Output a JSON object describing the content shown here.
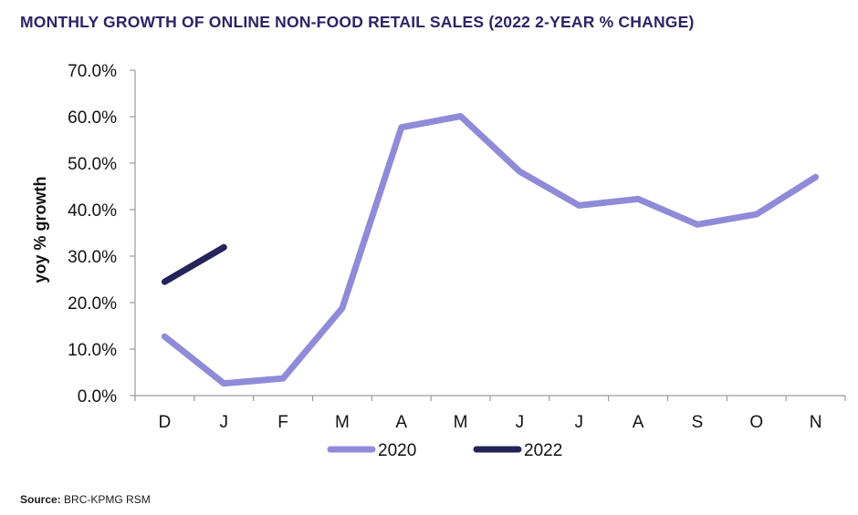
{
  "title": {
    "main": "MONTHLY GROWTH OF ONLINE NON-FOOD RETAIL SALES",
    "suffix": "(2022 2-YEAR % CHANGE)"
  },
  "source": {
    "label": "Source:",
    "text": "BRC-KPMG RSM"
  },
  "chart_data": {
    "type": "line",
    "ylabel": "yoy % growth",
    "xlabel": "",
    "ylim": [
      0,
      70
    ],
    "yticks": [
      "0.0%",
      "10.0%",
      "20.0%",
      "30.0%",
      "40.0%",
      "50.0%",
      "60.0%",
      "70.0%"
    ],
    "categories": [
      "D",
      "J",
      "F",
      "M",
      "A",
      "M",
      "J",
      "J",
      "A",
      "S",
      "O",
      "N"
    ],
    "grid": false,
    "legend_position": "bottom",
    "series": [
      {
        "name": "2020",
        "color": "#8f8bd8",
        "values": [
          12.7,
          2.6,
          3.7,
          18.8,
          57.7,
          60.1,
          48.2,
          40.9,
          42.3,
          36.8,
          39.0,
          47.0
        ]
      },
      {
        "name": "2022",
        "color": "#25235a",
        "values": [
          24.5,
          31.9,
          null,
          null,
          null,
          null,
          null,
          null,
          null,
          null,
          null,
          null
        ]
      }
    ]
  }
}
